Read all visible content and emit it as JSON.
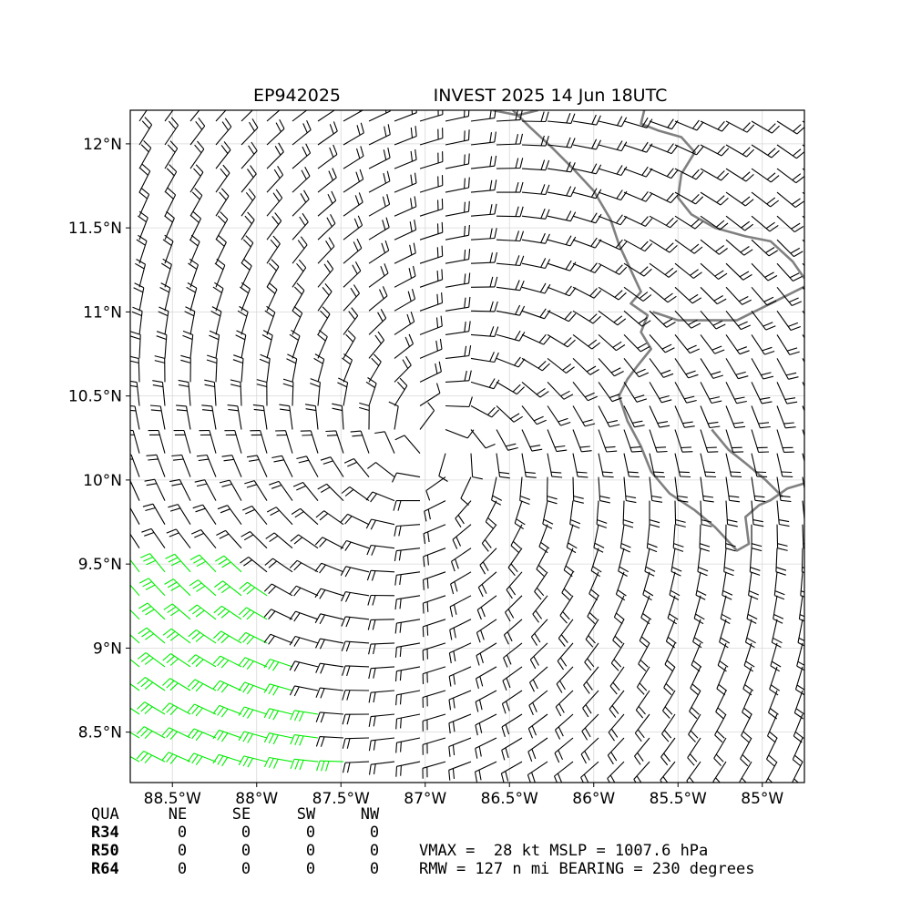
{
  "title": {
    "storm_id": "EP942025",
    "caption": "INVEST 2025 14 Jun 18UTC"
  },
  "map": {
    "lon_range": [
      -88.75,
      -84.75
    ],
    "lat_range": [
      8.2,
      12.2
    ],
    "x_ticks": [
      {
        "value": -88.5,
        "label": "88.5°W"
      },
      {
        "value": -88.0,
        "label": "88°W"
      },
      {
        "value": -87.5,
        "label": "87.5°W"
      },
      {
        "value": -87.0,
        "label": "87°W"
      },
      {
        "value": -86.5,
        "label": "86.5°W"
      },
      {
        "value": -86.0,
        "label": "86°W"
      },
      {
        "value": -85.5,
        "label": "85.5°W"
      },
      {
        "value": -85.0,
        "label": "85°W"
      }
    ],
    "y_ticks": [
      {
        "value": 12.0,
        "label": "12°N"
      },
      {
        "value": 11.5,
        "label": "11.5°N"
      },
      {
        "value": 11.0,
        "label": "11°N"
      },
      {
        "value": 10.5,
        "label": "10.5°N"
      },
      {
        "value": 10.0,
        "label": "10°N"
      },
      {
        "value": 9.5,
        "label": "9.5°N"
      },
      {
        "value": 9.0,
        "label": "9°N"
      },
      {
        "value": 8.5,
        "label": "8.5°N"
      }
    ],
    "gridlines": true,
    "wind_field": {
      "type": "barbs",
      "circulation_center": {
        "lon": -86.95,
        "lat": 10.2
      },
      "green_barbs_region": "southwest corner",
      "colors": {
        "barb": "#000000",
        "green_barb": "#00ee00",
        "coastline": "#808080"
      }
    }
  },
  "quadrant_table": {
    "header": [
      "QUA",
      "NE",
      "SE",
      "SW",
      "NW"
    ],
    "rows": [
      {
        "label": "R34",
        "values": [
          "0",
          "0",
          "0",
          "0"
        ]
      },
      {
        "label": "R50",
        "values": [
          "0",
          "0",
          "0",
          "0"
        ]
      },
      {
        "label": "R64",
        "values": [
          "0",
          "0",
          "0",
          "0"
        ]
      }
    ]
  },
  "stats": {
    "line1": "VMAX =  28 kt MSLP = 1007.6 hPa",
    "line2": "RMW = 127 n mi BEARING = 230 degrees"
  }
}
